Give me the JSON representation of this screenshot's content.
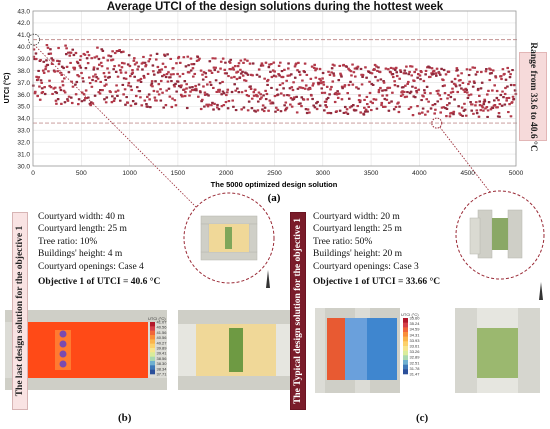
{
  "title": "Average UTCI of the design solutions during the hottest week",
  "chart_data": {
    "type": "scatter",
    "title": "Average UTCI of the design solutions during the hottest week",
    "xlabel": "The 5000 optimized design solution",
    "ylabel": "UTCI (°C)",
    "xlim": [
      0,
      5000
    ],
    "ylim": [
      30.0,
      43.0
    ],
    "x_ticks": [
      "0",
      "500",
      "1000",
      "1500",
      "2000",
      "2500",
      "3000",
      "3500",
      "4000",
      "4500",
      "5000"
    ],
    "y_ticks": [
      "30.0",
      "31.0",
      "32.0",
      "33.0",
      "34.0",
      "35.0",
      "36.0",
      "37.0",
      "38.0",
      "39.0",
      "40.0",
      "41.0",
      "42.0",
      "43.0"
    ],
    "grid": true,
    "reference_lines": [
      40.6,
      33.6
    ],
    "series": [
      {
        "point_count": 5000,
        "color": "#b33a4a",
        "envelope_upper": [
          [
            0,
            40.6
          ],
          [
            1000,
            39.7
          ],
          [
            2500,
            38.8
          ],
          [
            4000,
            38.4
          ],
          [
            5000,
            38.3
          ]
        ],
        "envelope_lower": [
          [
            0,
            35.2
          ],
          [
            1000,
            35.0
          ],
          [
            2500,
            34.5
          ],
          [
            4000,
            34.2
          ],
          [
            5000,
            34.0
          ]
        ],
        "highlighted": [
          {
            "x": 10,
            "y": 40.6
          },
          {
            "x": 4180,
            "y": 33.6
          }
        ]
      }
    ]
  },
  "range_annotation": "Range from 33.6 to 40.6 °C",
  "panel_a_label": "(a)",
  "panel_b": {
    "label": "(b)",
    "side_title": "The last design solution for the objective 1",
    "lines": [
      "Courtyard width: 40 m",
      "Courtyard length: 25 m",
      "Tree ratio: 10%",
      "Buildings' height: 4 m",
      "Courtyard openings: Case 4"
    ],
    "objective": "Objective 1 of UTCI =  40.6 °C",
    "colorbar_title": "UTCI (°C)",
    "colorbar_values": [
      "41.07",
      "40.56",
      "41.56",
      "40.56",
      "40.27",
      "39.89",
      "39.41",
      "38.56",
      "38.30",
      "38.34",
      "37.71"
    ]
  },
  "panel_c": {
    "label": "(c)",
    "side_title": "The Typical design solution for the objective 1",
    "lines": [
      "Courtyard width: 20 m",
      "Courtyard length: 25 m",
      "Tree ratio: 50%",
      "Buildings' height: 20 m",
      "Courtyard openings: Case 3"
    ],
    "objective": "Objective 1 of UTCI =  33.66 °C",
    "colorbar_title": "UTCI (°C)",
    "colorbar_values": [
      "35.60",
      "35.24",
      "34.59",
      "34.31",
      "33.93",
      "33.61",
      "33.26",
      "32.89",
      "32.51",
      "31.78",
      "31.47"
    ]
  },
  "colors": {
    "points": "#b33a4a",
    "reference_line": "#c39090",
    "highlight_circle": "#9a2a36",
    "banner_dark": "#7a1c2a",
    "banner_light": "#f9e3e3",
    "building": "#cfcfc7",
    "courtyard_hot": "#ff4a17",
    "courtyard_cool": "#3f86cf",
    "tree": "#6e9a43"
  }
}
